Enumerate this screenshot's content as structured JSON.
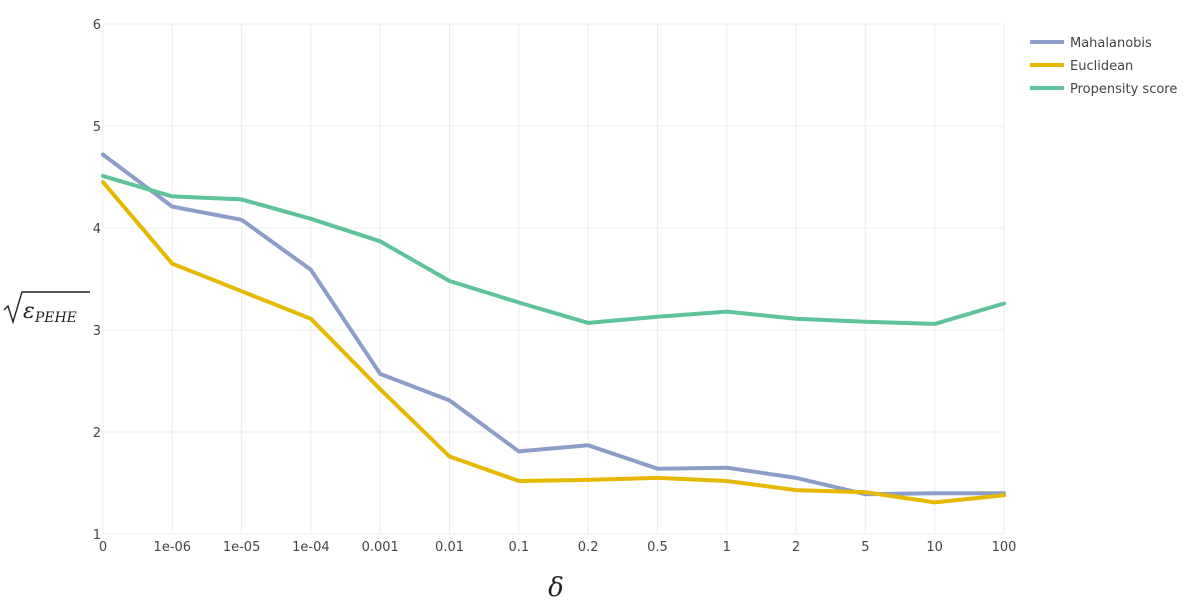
{
  "chart_data": {
    "type": "line",
    "categories": [
      "0",
      "1e-06",
      "1e-05",
      "1e-04",
      "0.001",
      "0.01",
      "0.1",
      "0.2",
      "0.5",
      "1",
      "2",
      "5",
      "10",
      "100"
    ],
    "series": [
      {
        "name": "Mahalanobis",
        "color": "#8c9dc9",
        "values": [
          4.72,
          4.21,
          4.08,
          3.59,
          2.57,
          2.31,
          1.81,
          1.87,
          1.64,
          1.65,
          1.55,
          1.39,
          1.4,
          1.4
        ]
      },
      {
        "name": "Euclidean",
        "color": "#e6b800",
        "values": [
          4.45,
          3.65,
          3.38,
          3.11,
          2.42,
          1.76,
          1.52,
          1.53,
          1.55,
          1.52,
          1.43,
          1.41,
          1.31,
          1.38
        ]
      },
      {
        "name": "Propensity score",
        "color": "#5ec29a",
        "values": [
          4.51,
          4.31,
          4.28,
          4.09,
          3.87,
          3.48,
          3.27,
          3.07,
          3.13,
          3.18,
          3.11,
          3.08,
          3.06,
          3.26
        ]
      }
    ],
    "yticks": [
      "1",
      "2",
      "3",
      "4",
      "5",
      "6"
    ],
    "ylim": [
      1,
      6
    ],
    "xlabel": "δ",
    "ylabel_text": "ε",
    "ylabel_subscript": "PEHE",
    "grid": true,
    "legend_position": "top-right"
  }
}
